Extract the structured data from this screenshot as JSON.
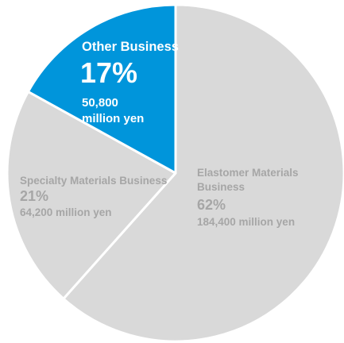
{
  "chart_data": {
    "type": "pie",
    "slices": [
      {
        "name_lines": [
          "Elastomer Materials",
          "Business"
        ],
        "percent_label": "62%",
        "value_label": "184,400 million yen",
        "value": 184400,
        "percent": 62,
        "color": "#d9d9d9",
        "text_color": "#a6a6a6"
      },
      {
        "name_lines": [
          "Specialty Materials Business"
        ],
        "percent_label": "21%",
        "value_label": "64,200 million yen",
        "value": 64200,
        "percent": 21,
        "color": "#d9d9d9",
        "text_color": "#a6a6a6"
      },
      {
        "name_lines": [
          "Other Business"
        ],
        "percent_label": "17%",
        "value_label_lines": [
          "50,800",
          "million yen"
        ],
        "value": 50800,
        "percent": 17,
        "color": "#0095db",
        "text_color": "#ffffff"
      }
    ],
    "separator_color": "#ffffff",
    "start_angle_deg": 0,
    "direction": "clockwise"
  }
}
